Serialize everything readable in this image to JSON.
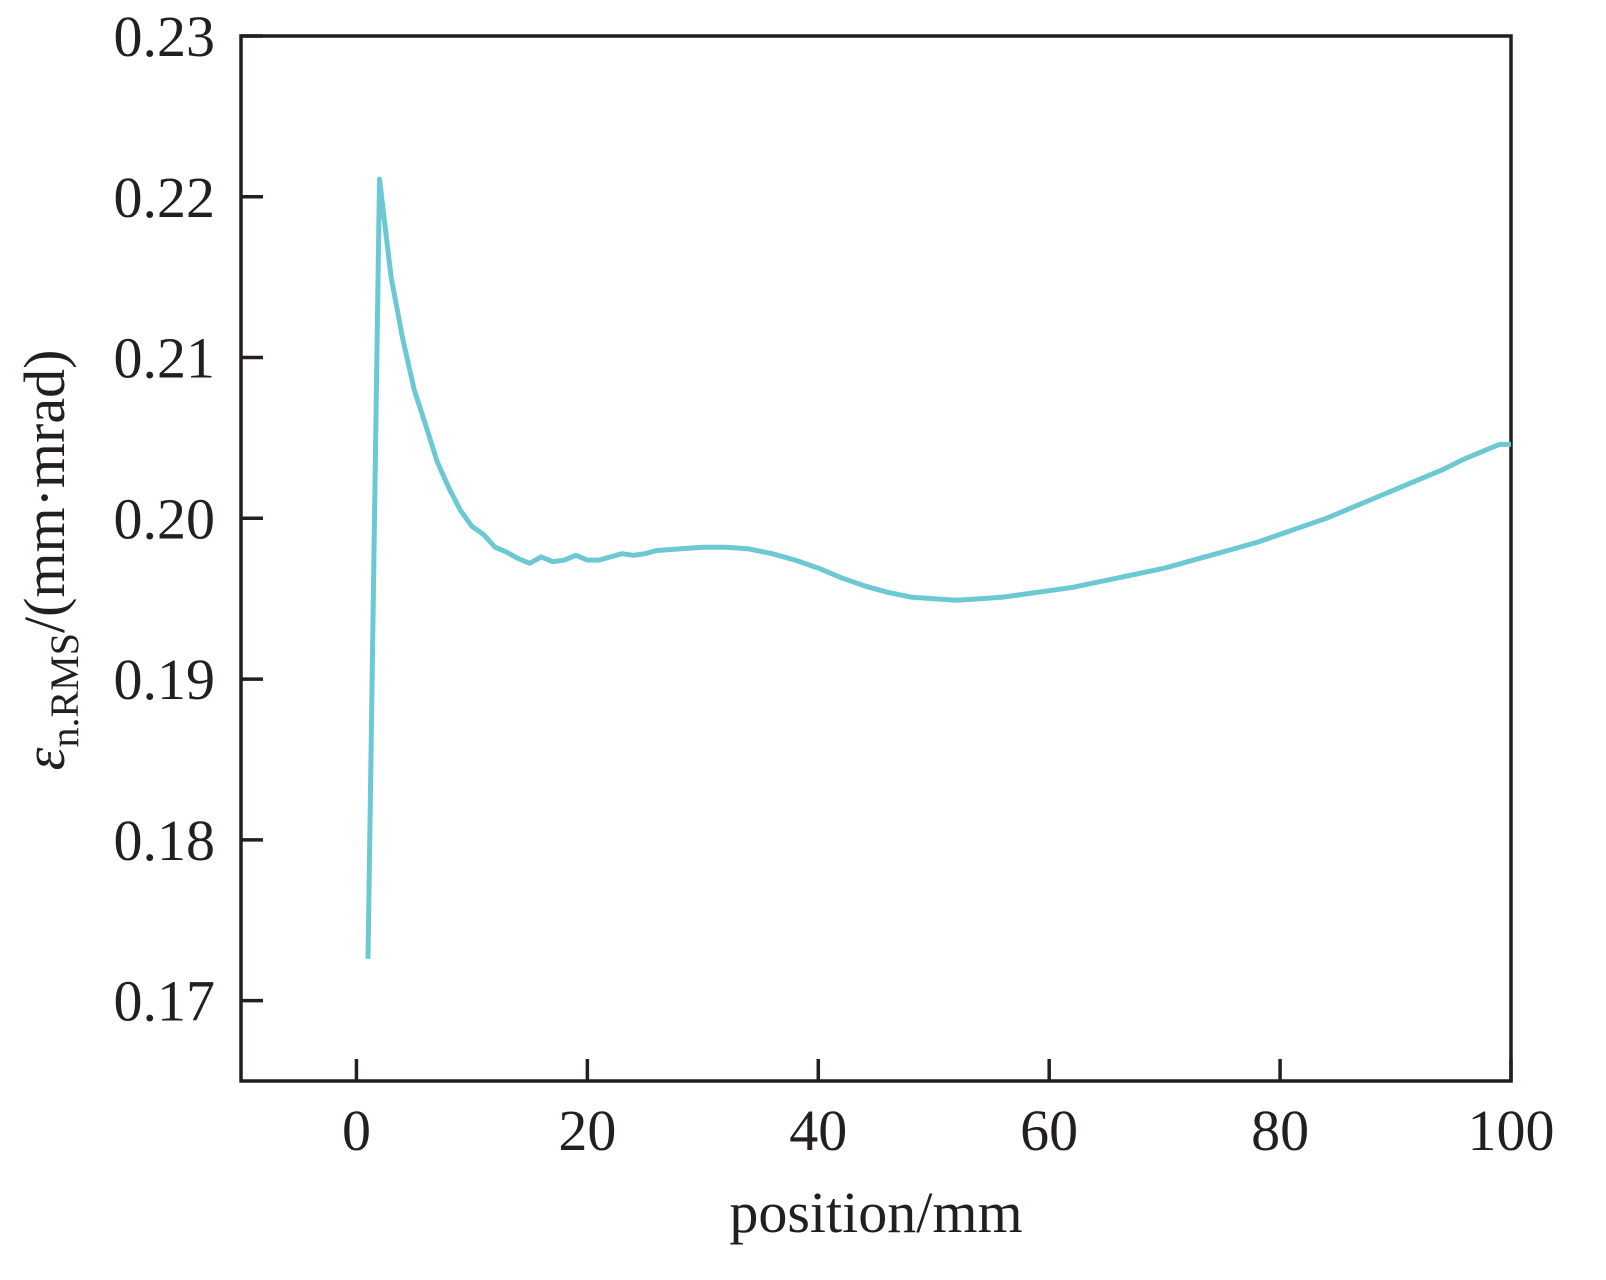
{
  "colors": {
    "line": "#6cc9d3",
    "axis": "#231f20"
  },
  "chart_data": {
    "type": "line",
    "title": "",
    "xlabel": "position/mm",
    "ylabel": {
      "symbol": "ε",
      "subscript": "n.RMS",
      "unit": "/(mm·mrad)"
    },
    "xlim": [
      -10,
      100
    ],
    "ylim": [
      0.165,
      0.23
    ],
    "xticks": [
      0,
      20,
      40,
      60,
      80,
      100
    ],
    "xtick_labels": [
      "0",
      "20",
      "40",
      "60",
      "80",
      "100"
    ],
    "yticks": [
      0.17,
      0.18,
      0.19,
      0.2,
      0.21,
      0.22,
      0.23
    ],
    "ytick_labels": [
      "0.17",
      "0.18",
      "0.19",
      "0.20",
      "0.21",
      "0.22",
      "0.23"
    ],
    "grid": false,
    "series": [
      {
        "x": [
          1,
          2,
          3,
          4,
          5,
          6,
          7,
          8,
          9,
          10,
          11,
          12,
          13,
          14,
          15,
          16,
          17,
          18,
          19,
          20,
          21,
          22,
          23,
          24,
          25,
          26,
          28,
          30,
          32,
          34,
          36,
          38,
          40,
          42,
          44,
          46,
          48,
          50,
          52,
          54,
          56,
          58,
          60,
          62,
          64,
          66,
          68,
          70,
          72,
          74,
          76,
          78,
          80,
          82,
          84,
          86,
          88,
          90,
          92,
          94,
          96,
          98,
          99,
          100
        ],
        "y": [
          0.1726,
          0.2211,
          0.215,
          0.2112,
          0.208,
          0.2058,
          0.2035,
          0.2019,
          0.2005,
          0.1995,
          0.199,
          0.1982,
          0.1979,
          0.1975,
          0.1972,
          0.1976,
          0.1973,
          0.1974,
          0.1977,
          0.1974,
          0.1974,
          0.1976,
          0.1978,
          0.1977,
          0.1978,
          0.198,
          0.1981,
          0.1982,
          0.1982,
          0.1981,
          0.1978,
          0.1974,
          0.1969,
          0.1963,
          0.1958,
          0.1954,
          0.1951,
          0.195,
          0.1949,
          0.195,
          0.1951,
          0.1953,
          0.1955,
          0.1957,
          0.196,
          0.1963,
          0.1966,
          0.1969,
          0.1973,
          0.1977,
          0.1981,
          0.1985,
          0.199,
          0.1995,
          0.2,
          0.2006,
          0.2012,
          0.2018,
          0.2024,
          0.203,
          0.2037,
          0.2043,
          0.2046,
          0.2046
        ]
      }
    ]
  }
}
